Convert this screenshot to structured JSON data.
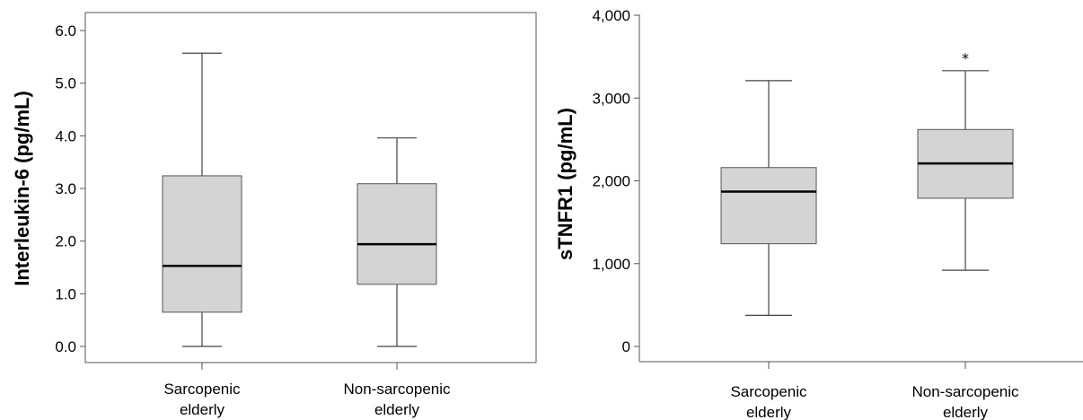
{
  "chart_data": [
    {
      "type": "box",
      "ylabel": "Interleukin-6 (pg/mL)",
      "ylim": [
        -0.3,
        6.3
      ],
      "yticks": [
        0,
        1,
        2,
        3,
        4,
        5,
        6
      ],
      "ytick_labels": [
        "0.0",
        "1.0",
        "2.0",
        "3.0",
        "4.0",
        "5.0",
        "6.0"
      ],
      "categories": [
        [
          "Sarcopenic",
          "elderly"
        ],
        [
          "Non-sarcopenic",
          "elderly"
        ]
      ],
      "boxes": [
        {
          "min": 0.0,
          "q1": 0.65,
          "median": 1.53,
          "q3": 3.24,
          "max": 5.57
        },
        {
          "min": 0.0,
          "q1": 1.18,
          "median": 1.94,
          "q3": 3.09,
          "max": 3.96
        }
      ],
      "outliers": [
        [],
        []
      ],
      "box_color": "#d4d4d4"
    },
    {
      "type": "box",
      "ylabel": "sTNFR1 (pg/mL)",
      "ylim": [
        -200,
        4000
      ],
      "yticks": [
        0,
        1000,
        2000,
        3000,
        4000
      ],
      "ytick_labels": [
        "0",
        "1,000",
        "2,000",
        "3,000",
        "4,000"
      ],
      "categories": [
        [
          "Sarcopenic",
          "elderly"
        ],
        [
          "Non-sarcopenic",
          "elderly"
        ]
      ],
      "boxes": [
        {
          "min": 375,
          "q1": 1240,
          "median": 1870,
          "q3": 2160,
          "max": 3210
        },
        {
          "min": 920,
          "q1": 1790,
          "median": 2210,
          "q3": 2620,
          "max": 3330
        }
      ],
      "outliers": [
        [],
        [
          {
            "label": "*",
            "value": 3530
          }
        ]
      ],
      "box_color": "#d4d4d4"
    }
  ]
}
